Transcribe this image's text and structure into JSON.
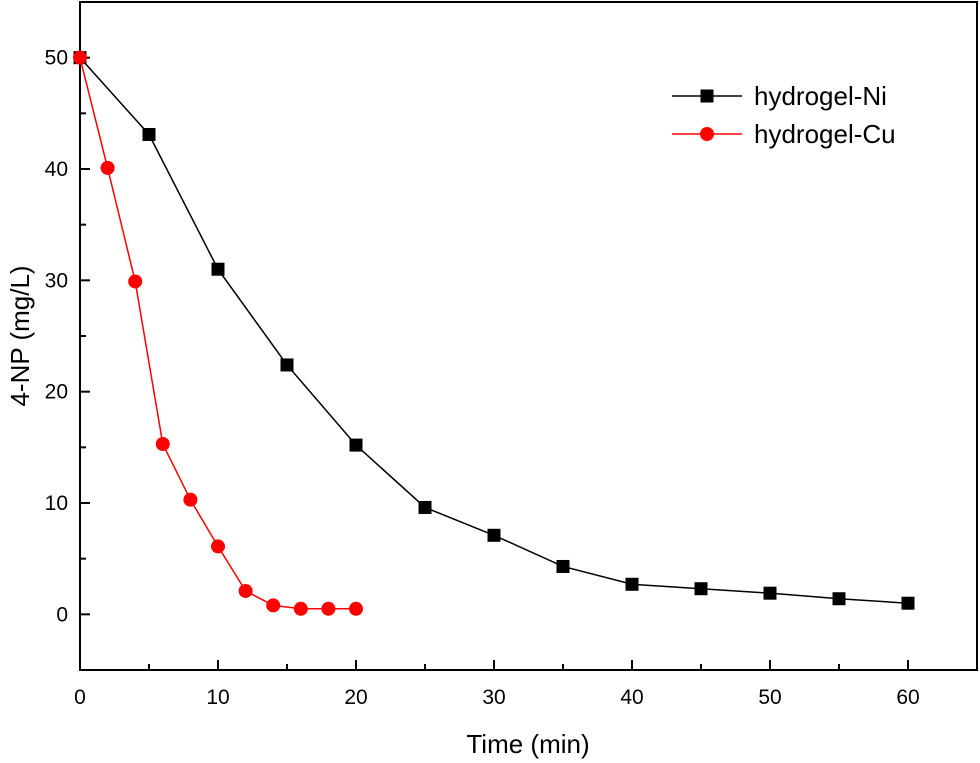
{
  "chart_data": {
    "type": "line",
    "title": "",
    "xlabel": "Time (min)",
    "ylabel": "4-NP (mg/L)",
    "xlim": [
      0,
      65
    ],
    "ylim": [
      -5,
      55
    ],
    "x_ticks": [
      0,
      10,
      20,
      30,
      40,
      50,
      60
    ],
    "y_ticks": [
      0,
      10,
      20,
      30,
      40,
      50
    ],
    "grid": false,
    "legend_position": "top-right",
    "series": [
      {
        "name": "hydrogel-Ni",
        "color": "#000000",
        "marker": "square",
        "x": [
          0,
          5,
          10,
          15,
          20,
          25,
          30,
          35,
          40,
          45,
          50,
          55,
          60
        ],
        "y": [
          50,
          43.1,
          31.0,
          22.4,
          15.2,
          9.6,
          7.1,
          4.3,
          2.7,
          2.3,
          1.9,
          1.4,
          1.0
        ]
      },
      {
        "name": "hydrogel-Cu",
        "color": "#ff0000",
        "marker": "circle",
        "x": [
          0,
          2,
          4,
          6,
          8,
          10,
          12,
          14,
          16,
          18,
          20
        ],
        "y": [
          50,
          40.1,
          29.9,
          15.3,
          10.3,
          6.1,
          2.1,
          0.8,
          0.5,
          0.5,
          0.5
        ]
      }
    ]
  }
}
